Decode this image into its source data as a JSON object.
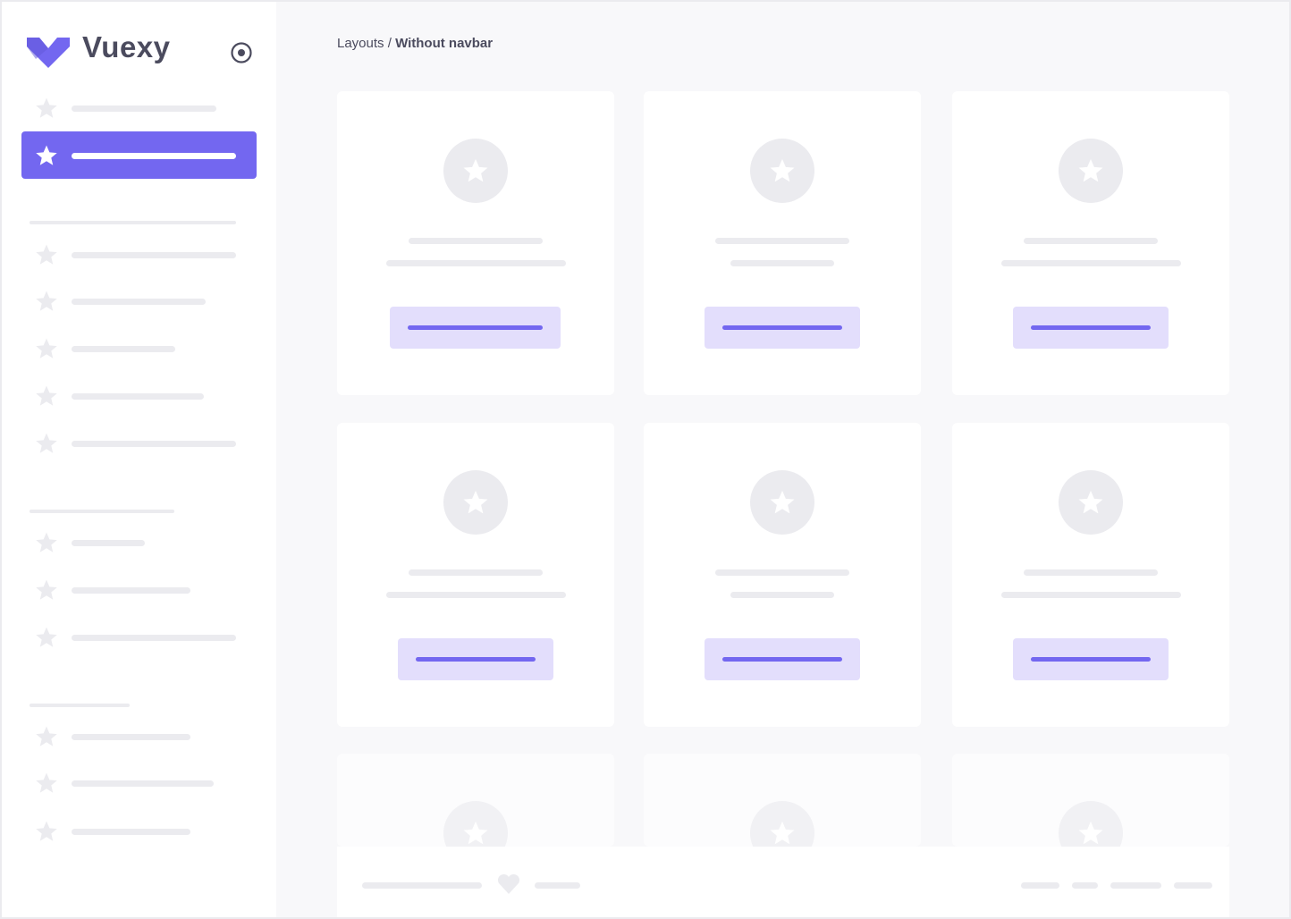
{
  "app": {
    "brand": "Vuexy"
  },
  "breadcrumb": {
    "parent": "Layouts",
    "separator": " / ",
    "current": "Without navbar"
  },
  "colors": {
    "primary": "#7367f0",
    "primary_light": "#e3defc",
    "placeholder": "#ebebef",
    "background": "#f8f8fa"
  },
  "icons": {
    "logo": "vuexy-logo",
    "sidebar_toggle": "radio-circle-icon",
    "nav_item": "star-icon",
    "card": "star-icon",
    "footer": "heart-icon"
  },
  "sidebar": {
    "active_index": 1
  }
}
